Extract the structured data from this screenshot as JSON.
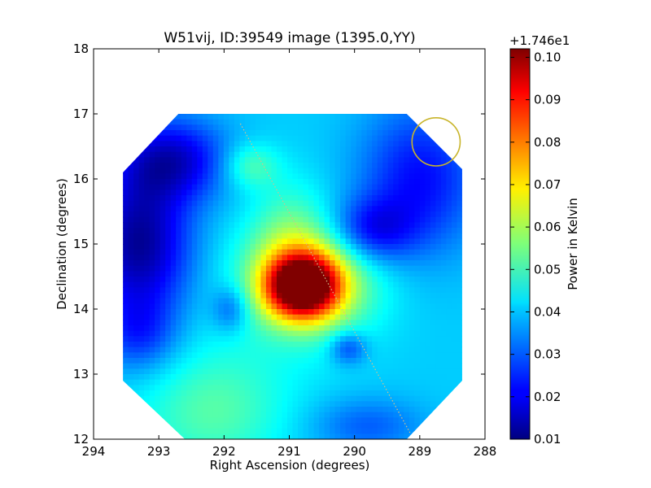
{
  "chart_data": {
    "type": "heatmap",
    "title": "W51vij, ID:39549 image (1395.0,YY)",
    "xlabel": "Right Ascension (degrees)",
    "ylabel": "Declination (degrees)",
    "xlim": [
      294,
      288
    ],
    "ylim": [
      12,
      18
    ],
    "xticks": [
      294,
      293,
      292,
      291,
      290,
      289,
      288
    ],
    "yticks": [
      12,
      13,
      14,
      15,
      16,
      17,
      18
    ],
    "image_extent": {
      "ra": [
        293.55,
        288.35
      ],
      "dec": [
        12.0,
        17.0
      ]
    },
    "clip_polygon": [
      [
        292.6,
        12.0
      ],
      [
        293.55,
        12.9
      ],
      [
        293.55,
        16.1
      ],
      [
        292.7,
        17.0
      ],
      [
        289.2,
        17.0
      ],
      [
        288.35,
        16.15
      ],
      [
        288.35,
        12.9
      ],
      [
        289.2,
        12.0
      ]
    ],
    "colormap": "jet",
    "colorbar": {
      "label": "Power in Kelvin",
      "offset_label": "+1.746e1",
      "range": [
        0.01,
        0.102
      ],
      "ticks": [
        0.01,
        0.02,
        0.03,
        0.04,
        0.05,
        0.06,
        0.07,
        0.08,
        0.09,
        0.1
      ],
      "tick_labels": [
        "0.01",
        "0.02",
        "0.03",
        "0.04",
        "0.05",
        "0.06",
        "0.07",
        "0.08",
        "0.09",
        "0.10"
      ]
    },
    "background_level": 0.04,
    "features": [
      {
        "ra": 290.8,
        "dec": 14.35,
        "amplitude": 0.062,
        "sigma_ra": 0.38,
        "sigma_dec": 0.33
      },
      {
        "ra": 290.7,
        "dec": 14.45,
        "amplitude": 0.028,
        "sigma_ra": 0.7,
        "sigma_dec": 0.6
      },
      {
        "ra": 291.0,
        "dec": 15.2,
        "amplitude": 0.008,
        "sigma_ra": 0.4,
        "sigma_dec": 0.6
      },
      {
        "ra": 291.6,
        "dec": 16.2,
        "amplitude": 0.012,
        "sigma_ra": 0.3,
        "sigma_dec": 0.25
      },
      {
        "ra": 293.3,
        "dec": 15.0,
        "amplitude": -0.028,
        "sigma_ra": 0.55,
        "sigma_dec": 0.8
      },
      {
        "ra": 292.8,
        "dec": 16.3,
        "amplitude": -0.022,
        "sigma_ra": 0.6,
        "sigma_dec": 0.45
      },
      {
        "ra": 293.3,
        "dec": 13.6,
        "amplitude": -0.012,
        "sigma_ra": 0.4,
        "sigma_dec": 0.4
      },
      {
        "ra": 289.75,
        "dec": 15.2,
        "amplitude": -0.018,
        "sigma_ra": 0.45,
        "sigma_dec": 0.35
      },
      {
        "ra": 289.0,
        "dec": 16.0,
        "amplitude": -0.018,
        "sigma_ra": 0.65,
        "sigma_dec": 0.8
      },
      {
        "ra": 291.9,
        "dec": 14.0,
        "amplitude": -0.012,
        "sigma_ra": 0.2,
        "sigma_dec": 0.25
      },
      {
        "ra": 290.1,
        "dec": 13.4,
        "amplitude": -0.014,
        "sigma_ra": 0.2,
        "sigma_dec": 0.18
      },
      {
        "ra": 292.2,
        "dec": 12.3,
        "amplitude": 0.01,
        "sigma_ra": 0.8,
        "sigma_dec": 0.6
      },
      {
        "ra": 289.8,
        "dec": 12.2,
        "amplitude": -0.01,
        "sigma_ra": 0.6,
        "sigma_dec": 0.3
      },
      {
        "ra": 292.0,
        "dec": 13.0,
        "amplitude": 0.004,
        "sigma_ra": 0.8,
        "sigma_dec": 0.6
      }
    ],
    "line": {
      "from": [
        291.75,
        16.85
      ],
      "to": [
        289.15,
        12.1
      ],
      "color": "#d4c08c"
    },
    "beam_circle": {
      "ra": 288.75,
      "dec": 16.57,
      "radius_deg": 0.37,
      "color": "#c8b42a"
    }
  }
}
